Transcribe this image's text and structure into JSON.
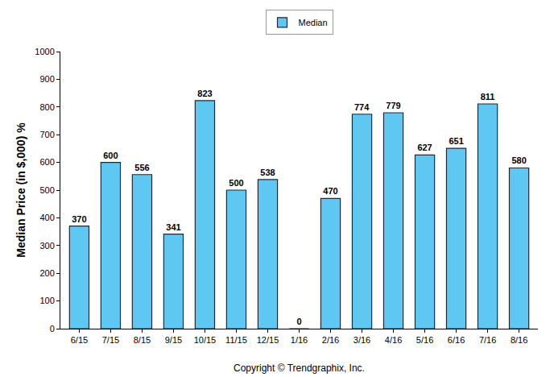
{
  "chart_data": {
    "type": "bar",
    "y_label": "Median Price (in $,000) %",
    "categories": [
      "6/15",
      "7/15",
      "8/15",
      "9/15",
      "10/15",
      "11/15",
      "12/15",
      "1/16",
      "2/16",
      "3/16",
      "4/16",
      "5/16",
      "6/16",
      "7/16",
      "8/16"
    ],
    "series": [
      {
        "name": "Median",
        "color": "#5ec8f2",
        "values": [
          370,
          600,
          556,
          341,
          823,
          500,
          538,
          0,
          470,
          774,
          779,
          627,
          651,
          811,
          580
        ]
      }
    ],
    "ylim": [
      0,
      1000
    ],
    "yticks": [
      0,
      100,
      200,
      300,
      400,
      500,
      600,
      700,
      800,
      900,
      1000
    ],
    "grid": false,
    "legend": "top",
    "data_labels": true,
    "annotations": [
      "Copyright © Trendgraphix, Inc."
    ]
  }
}
